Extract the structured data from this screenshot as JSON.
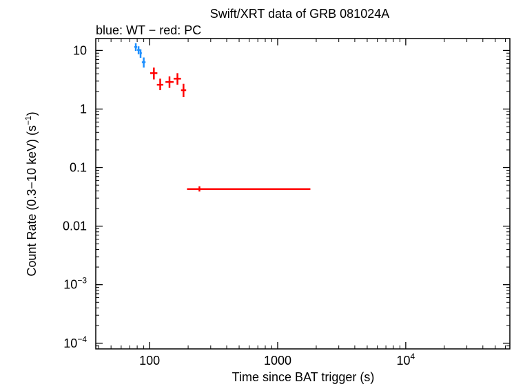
{
  "chart_data": {
    "type": "scatter",
    "title": "Swift/XRT data of GRB 081024A",
    "subtitle": "blue: WT − red: PC",
    "xlabel": "Time since BAT trigger (s)",
    "ylabel_main": "Count Rate (0.3−10 keV) (s",
    "ylabel_sup": "−1",
    "ylabel_end": ")",
    "x_scale": "log",
    "y_scale": "log",
    "xlim": [
      38,
      65000
    ],
    "ylim": [
      8e-05,
      16
    ],
    "grid": false,
    "x_ticks": [
      {
        "value": 100,
        "base": "100",
        "exp": ""
      },
      {
        "value": 1000,
        "base": "1000",
        "exp": ""
      },
      {
        "value": 10000,
        "base": "10",
        "exp": "4"
      }
    ],
    "y_ticks": [
      {
        "value": 10,
        "base": "10",
        "exp": ""
      },
      {
        "value": 1,
        "base": "1",
        "exp": ""
      },
      {
        "value": 0.1,
        "base": "0.1",
        "exp": ""
      },
      {
        "value": 0.01,
        "base": "0.01",
        "exp": ""
      },
      {
        "value": 0.001,
        "base": "10",
        "exp": "−3"
      },
      {
        "value": 0.0001,
        "base": "10",
        "exp": "−4"
      }
    ],
    "series": [
      {
        "mode": "WT",
        "color": "#1e90ff",
        "points": [
          {
            "x": 78,
            "xlo": 76,
            "xhi": 80,
            "y": 11.5,
            "ylo": 9.8,
            "yhi": 13.3
          },
          {
            "x": 82,
            "xlo": 80,
            "xhi": 84,
            "y": 10.2,
            "ylo": 8.6,
            "yhi": 11.8
          },
          {
            "x": 85,
            "xlo": 84,
            "xhi": 87,
            "y": 9.0,
            "ylo": 7.5,
            "yhi": 10.5
          },
          {
            "x": 90,
            "xlo": 87,
            "xhi": 93,
            "y": 6.3,
            "ylo": 5.1,
            "yhi": 7.6
          }
        ]
      },
      {
        "mode": "PC",
        "color": "#ff0000",
        "points": [
          {
            "x": 108,
            "xlo": 101,
            "xhi": 115,
            "y": 4.1,
            "ylo": 3.2,
            "yhi": 5.1
          },
          {
            "x": 121,
            "xlo": 114,
            "xhi": 128,
            "y": 2.6,
            "ylo": 2.1,
            "yhi": 3.3
          },
          {
            "x": 143,
            "xlo": 133,
            "xhi": 154,
            "y": 2.9,
            "ylo": 2.3,
            "yhi": 3.6
          },
          {
            "x": 165,
            "xlo": 154,
            "xhi": 176,
            "y": 3.3,
            "ylo": 2.6,
            "yhi": 4.1
          },
          {
            "x": 184,
            "xlo": 176,
            "xhi": 193,
            "y": 2.1,
            "ylo": 1.6,
            "yhi": 2.7
          },
          {
            "x": 245,
            "xlo": 196,
            "xhi": 1800,
            "y": 0.043,
            "ylo": 0.039,
            "yhi": 0.048
          }
        ]
      }
    ]
  }
}
